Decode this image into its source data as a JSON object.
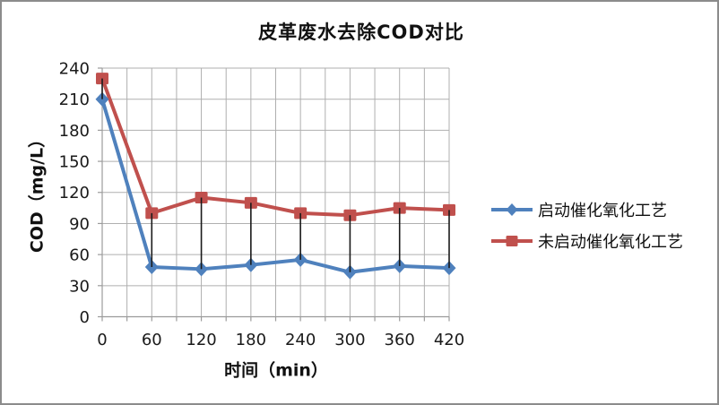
{
  "chart_data": {
    "type": "line",
    "title": "皮革废水去除COD对比",
    "xlabel": "时间（min）",
    "ylabel": "COD（mg/L）",
    "x": [
      0,
      60,
      120,
      180,
      240,
      300,
      360,
      420
    ],
    "series": [
      {
        "name": "启动催化氧化工艺",
        "color": "#4F81BD",
        "marker": "diamond",
        "values": [
          210,
          48,
          46,
          50,
          55,
          43,
          49,
          47
        ]
      },
      {
        "name": "未启动催化氧化工艺",
        "color": "#C0504D",
        "marker": "square",
        "values": [
          230,
          100,
          115,
          110,
          100,
          98,
          105,
          103
        ]
      }
    ],
    "xlim": [
      0,
      420
    ],
    "ylim": [
      0,
      240
    ],
    "y_tick_step": 30,
    "x_label_step": 60,
    "x_minor_step": 30,
    "grid": true,
    "legend_position": "right",
    "high_low_lines": true,
    "colors": {
      "background": "#FFFFFF",
      "border": "#8C8C8C",
      "gridline": "#AFAFAF",
      "axis": "#9B9B9B",
      "high_low_line": "#1A1A1A",
      "text": "#1A1A1A"
    }
  }
}
